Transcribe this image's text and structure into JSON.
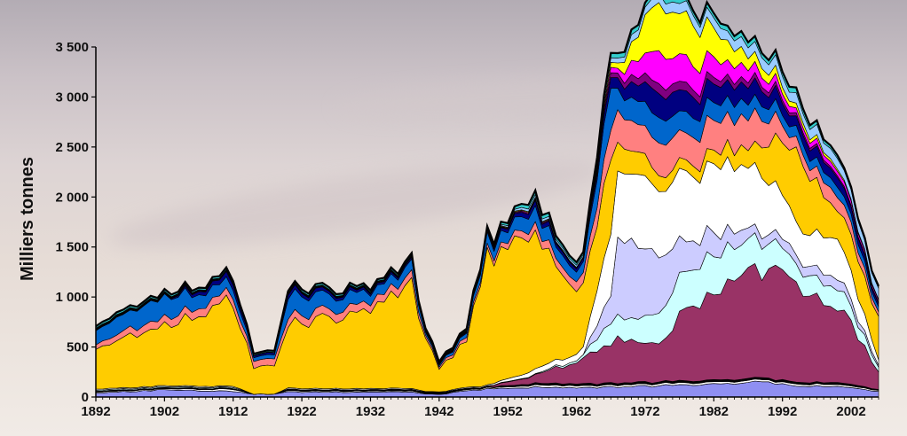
{
  "chart_data": {
    "type": "area",
    "stacked": true,
    "ylabel": "Milliers tonnes",
    "xlabel": "",
    "ylim": [
      0,
      3500
    ],
    "y_ticks": [
      0,
      500,
      1000,
      1500,
      2000,
      2500,
      3000,
      3500
    ],
    "y_tick_labels": [
      "0",
      "500",
      "1 000",
      "1 500",
      "2 000",
      "2 500",
      "3 000",
      "3 500"
    ],
    "x_tick_labels": [
      "1892",
      "1902",
      "1912",
      "1922",
      "1932",
      "1942",
      "1952",
      "1962",
      "1972",
      "1982",
      "1992",
      "2002"
    ],
    "x_ticks": [
      1892,
      1902,
      1912,
      1922,
      1932,
      1942,
      1952,
      1962,
      1972,
      1982,
      1992,
      2002
    ],
    "xlim": [
      1892,
      2006
    ],
    "grid": false,
    "legend": "none",
    "keyframes": [
      [
        1892,
        [
          40,
          10,
          5,
          5,
          10,
          0,
          10,
          400,
          50,
          150,
          5,
          5,
          5,
          5,
          5,
          20
        ]
      ],
      [
        1902,
        [
          70,
          10,
          5,
          5,
          10,
          0,
          10,
          600,
          80,
          200,
          5,
          5,
          5,
          5,
          5,
          20
        ]
      ],
      [
        1912,
        [
          60,
          20,
          5,
          5,
          10,
          0,
          10,
          850,
          80,
          100,
          60,
          5,
          5,
          5,
          5,
          20
        ]
      ],
      [
        1915,
        [
          30,
          0,
          0,
          0,
          0,
          0,
          0,
          250,
          70,
          40,
          20,
          0,
          0,
          0,
          5,
          15
        ]
      ],
      [
        1918,
        [
          30,
          0,
          0,
          0,
          0,
          0,
          0,
          280,
          70,
          40,
          20,
          0,
          0,
          0,
          5,
          15
        ]
      ],
      [
        1920,
        [
          50,
          10,
          5,
          5,
          5,
          0,
          10,
          650,
          80,
          200,
          40,
          5,
          5,
          5,
          5,
          20
        ]
      ],
      [
        1932,
        [
          50,
          10,
          5,
          5,
          5,
          0,
          10,
          750,
          80,
          100,
          20,
          5,
          5,
          5,
          5,
          20
        ]
      ],
      [
        1938,
        [
          50,
          10,
          5,
          5,
          5,
          0,
          10,
          1050,
          80,
          100,
          20,
          5,
          5,
          5,
          5,
          20
        ]
      ],
      [
        1940,
        [
          30,
          5,
          5,
          5,
          5,
          0,
          5,
          550,
          30,
          30,
          10,
          5,
          5,
          5,
          5,
          10
        ]
      ],
      [
        1942,
        [
          25,
          5,
          5,
          5,
          5,
          0,
          5,
          250,
          20,
          20,
          5,
          5,
          5,
          5,
          5,
          10
        ]
      ],
      [
        1946,
        [
          60,
          10,
          5,
          5,
          5,
          0,
          10,
          450,
          40,
          40,
          10,
          5,
          5,
          5,
          5,
          15
        ]
      ],
      [
        1949,
        [
          80,
          10,
          5,
          5,
          5,
          0,
          10,
          1300,
          40,
          100,
          20,
          5,
          5,
          5,
          5,
          20
        ]
      ],
      [
        1956,
        [
          100,
          20,
          20,
          80,
          5,
          0,
          50,
          1400,
          80,
          150,
          50,
          10,
          10,
          10,
          30,
          40
        ]
      ],
      [
        1961,
        [
          90,
          20,
          20,
          200,
          20,
          0,
          60,
          700,
          80,
          100,
          30,
          5,
          5,
          5,
          20,
          30
        ]
      ],
      [
        1963,
        [
          90,
          20,
          20,
          250,
          30,
          0,
          80,
          600,
          100,
          100,
          30,
          5,
          5,
          5,
          20,
          30
        ]
      ],
      [
        1967,
        [
          100,
          20,
          20,
          400,
          200,
          300,
          600,
          700,
          300,
          400,
          100,
          50,
          50,
          50,
          50,
          50
        ]
      ],
      [
        1968,
        [
          100,
          20,
          20,
          450,
          200,
          800,
          700,
          300,
          300,
          200,
          100,
          50,
          50,
          50,
          50,
          50
        ]
      ],
      [
        1974,
        [
          110,
          20,
          20,
          400,
          300,
          600,
          700,
          150,
          300,
          250,
          250,
          100,
          300,
          500,
          100,
          50
        ]
      ],
      [
        1978,
        [
          120,
          20,
          20,
          700,
          400,
          300,
          700,
          100,
          300,
          200,
          200,
          80,
          250,
          400,
          100,
          50
        ]
      ],
      [
        1988,
        [
          150,
          20,
          20,
          1100,
          300,
          100,
          600,
          200,
          300,
          150,
          150,
          50,
          100,
          100,
          100,
          50
        ]
      ],
      [
        1994,
        [
          120,
          20,
          20,
          1000,
          200,
          100,
          300,
          700,
          100,
          100,
          100,
          30,
          50,
          50,
          100,
          50
        ]
      ],
      [
        2000,
        [
          100,
          20,
          20,
          800,
          200,
          100,
          400,
          300,
          150,
          100,
          100,
          20,
          50,
          20,
          100,
          30
        ]
      ],
      [
        2006,
        [
          60,
          10,
          10,
          180,
          50,
          20,
          50,
          400,
          40,
          50,
          30,
          10,
          20,
          10,
          100,
          20
        ]
      ]
    ],
    "series": [
      {
        "color": "#8f8ff2"
      },
      {
        "color": "#ffffff"
      },
      {
        "color": "#000000"
      },
      {
        "color": "#993366"
      },
      {
        "color": "#ccffff"
      },
      {
        "color": "#ccccff"
      },
      {
        "color": "#ffffff"
      },
      {
        "color": "#ffcc00"
      },
      {
        "color": "#ff8080"
      },
      {
        "color": "#0066cc"
      },
      {
        "color": "#000080"
      },
      {
        "color": "#800080"
      },
      {
        "color": "#ff00ff"
      },
      {
        "color": "#ffff00"
      },
      {
        "color": "#99ccff"
      },
      {
        "color": "#33cccc"
      }
    ]
  }
}
